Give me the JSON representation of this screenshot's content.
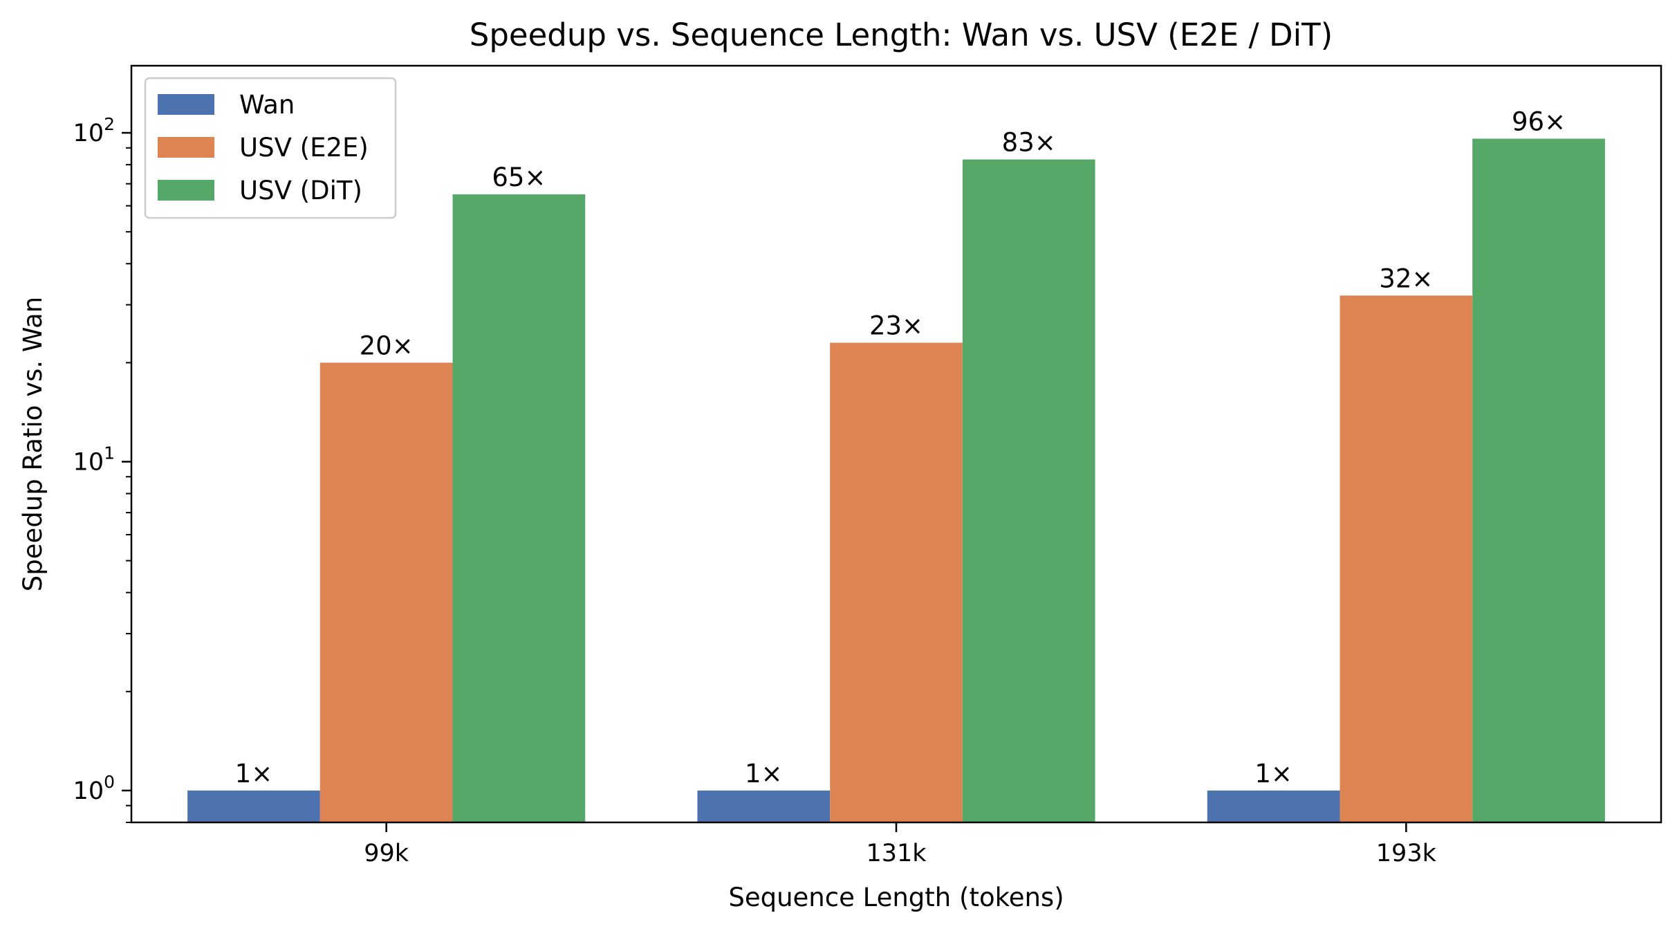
{
  "chart_data": {
    "type": "bar",
    "title": "Speedup vs. Sequence Length: Wan vs. USV (E2E / DiT)",
    "xlabel": "Sequence Length (tokens)",
    "ylabel": "Speedup Ratio vs. Wan",
    "yscale": "log",
    "ylim": [
      0.8,
      160
    ],
    "y_ticks": [
      1,
      10,
      100
    ],
    "y_tick_labels": [
      {
        "base": "10",
        "exp": "0"
      },
      {
        "base": "10",
        "exp": "1"
      },
      {
        "base": "10",
        "exp": "2"
      }
    ],
    "categories": [
      "99k",
      "131k",
      "193k"
    ],
    "series": [
      {
        "name": "Wan",
        "color": "#4c72b0",
        "values": [
          1,
          1,
          1
        ],
        "labels": [
          "1×",
          "1×",
          "1×"
        ]
      },
      {
        "name": "USV (E2E)",
        "color": "#dd8452",
        "values": [
          20,
          23,
          32
        ],
        "labels": [
          "20×",
          "23×",
          "32×"
        ]
      },
      {
        "name": "USV (DiT)",
        "color": "#55a868",
        "values": [
          65,
          83,
          96
        ],
        "labels": [
          "65×",
          "83×",
          "96×"
        ]
      }
    ],
    "legend_position": "top-left",
    "grid": false
  }
}
